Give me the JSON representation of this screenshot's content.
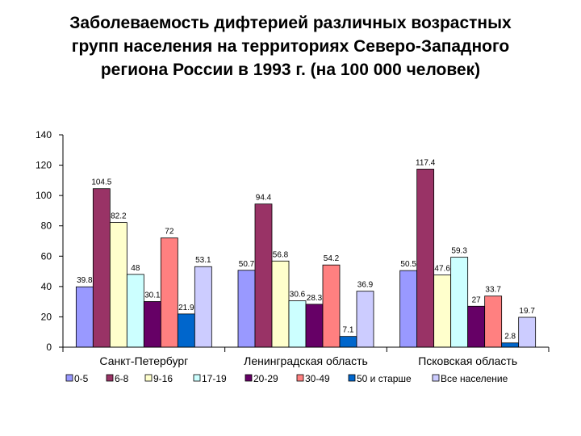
{
  "title_lines": [
    "Заболеваемость дифтерией различных возрастных",
    "групп населения на территориях Северо-Западного",
    "региона России в 1993 г. (на 100 000 человек)"
  ],
  "chart_data": {
    "type": "bar",
    "title": "Заболеваемость дифтерией различных возрастных групп населения на территориях Северо-Западного региона России в 1993 г. (на 100 000 человек)",
    "categories": [
      "Санкт-Петербург",
      "Ленинградская область",
      "Псковская область"
    ],
    "ylim": [
      0,
      140
    ],
    "yticks": [
      0,
      20,
      40,
      60,
      80,
      100,
      120,
      140
    ],
    "grid": false,
    "legend_position": "bottom",
    "series": [
      {
        "name": "0-5",
        "color": "#9999ff",
        "values": [
          39.8,
          50.7,
          50.5
        ]
      },
      {
        "name": "6-8",
        "color": "#993366",
        "values": [
          104.5,
          94.4,
          117.4
        ]
      },
      {
        "name": "9-16",
        "color": "#ffffcc",
        "values": [
          82.2,
          56.8,
          47.6
        ]
      },
      {
        "name": "17-19",
        "color": "#ccffff",
        "values": [
          48,
          30.6,
          59.3
        ]
      },
      {
        "name": "20-29",
        "color": "#660066",
        "values": [
          30.1,
          28.3,
          27
        ]
      },
      {
        "name": "30-49",
        "color": "#ff8080",
        "values": [
          72,
          54.2,
          33.7
        ]
      },
      {
        "name": "50 и старше",
        "color": "#0066cc",
        "values": [
          21.9,
          7.1,
          2.8
        ]
      },
      {
        "name": "Все население",
        "color": "#ccccff",
        "values": [
          53.1,
          36.9,
          19.7
        ]
      }
    ]
  }
}
